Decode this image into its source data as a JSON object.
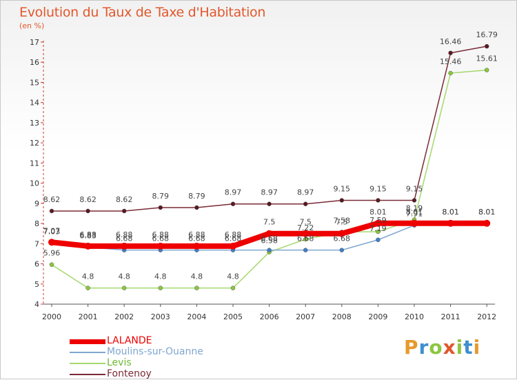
{
  "title": "Evolution du Taux de Taxe d'Habitation",
  "unit": "(en %)",
  "brand": {
    "letters": [
      "P",
      "r",
      "o",
      "x",
      "i",
      "t",
      "i"
    ],
    "colors": [
      "#e79a2c",
      "#3f8fd0",
      "#8cc63f",
      "#e2572b",
      "#8cc63f",
      "#3f8fd0",
      "#e79a2c"
    ]
  },
  "chart_data": {
    "type": "line",
    "title": "Evolution du Taux de Taxe d'Habitation",
    "ylabel": "(en %)",
    "xlabel": "",
    "x": [
      "2000",
      "2001",
      "2002",
      "2003",
      "2004",
      "2005",
      "2006",
      "2007",
      "2008",
      "2009",
      "2010",
      "2011",
      "2012"
    ],
    "ylim": [
      4,
      17
    ],
    "yticks": [
      "4",
      "5",
      "6",
      "7",
      "8",
      "9",
      "10",
      "11",
      "12",
      "13",
      "14",
      "15",
      "16",
      "17"
    ],
    "grid": false,
    "legend_position": "bottom-left",
    "series": [
      {
        "name": "Fontenoy",
        "color": "#7a2a35",
        "marker_color": "#5a1820",
        "values": [
          8.62,
          8.62,
          8.62,
          8.79,
          8.79,
          8.97,
          8.97,
          8.97,
          9.15,
          9.15,
          9.15,
          16.46,
          16.79
        ],
        "labels": [
          "8.62",
          "8.62",
          "8.62",
          "8.79",
          "8.79",
          "8.97",
          "8.97",
          "8.97",
          "9.15",
          "9.15",
          "9.15",
          "16.46",
          "16.79"
        ]
      },
      {
        "name": "Levis",
        "color": "#a4d86e",
        "marker_color": "#8cc63f",
        "values": [
          5.96,
          4.8,
          4.8,
          4.8,
          4.8,
          4.8,
          6.58,
          7.22,
          7.58,
          7.59,
          8.19,
          15.46,
          15.61
        ],
        "labels": [
          "5.96",
          "4.8",
          "4.8",
          "4.8",
          "4.8",
          "4.8",
          "6.58",
          "7.22",
          "7.58",
          "7.59",
          "8.19",
          "15.46",
          "15.61"
        ]
      },
      {
        "name": "Moulins-sur-Ouanne",
        "color": "#7fa6d0",
        "marker_color": "#3f7fc8",
        "values": [
          7.03,
          6.83,
          6.68,
          6.68,
          6.68,
          6.68,
          6.68,
          6.68,
          6.68,
          7.19,
          7.91,
          8.01,
          8.01
        ],
        "labels": [
          "7.03",
          "6.83",
          "6.68",
          "6.68",
          "6.68",
          "6.68",
          "6.68",
          "6.68",
          "6.68",
          "7.19",
          "7.91",
          "8.01",
          "8.01"
        ]
      },
      {
        "name": "LALANDE",
        "color": "#ee0000",
        "marker_color": "#ee0000",
        "values": [
          7.07,
          6.88,
          6.88,
          6.88,
          6.88,
          6.88,
          7.5,
          7.5,
          7.5,
          8.01,
          8.01,
          8.01,
          8.01
        ],
        "labels": [
          "7.07",
          "6.88",
          "6.88",
          "6.88",
          "6.88",
          "6.88",
          "7.5",
          "7.5",
          "7.5",
          "8.01",
          "8.01",
          "8.01",
          "8.01"
        ]
      }
    ],
    "legend": [
      "LALANDE",
      "Moulins-sur-Ouanne",
      "Levis",
      "Fontenoy"
    ]
  }
}
